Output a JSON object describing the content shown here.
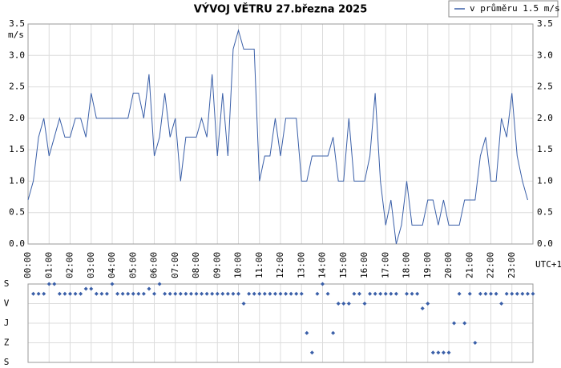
{
  "chart_data": [
    {
      "type": "line",
      "title": "VÝVOJ VĚTRU  27.března 2025",
      "ylabel": "m/s",
      "xlabel": "UTC+1",
      "x": [
        0,
        0.25,
        0.5,
        0.75,
        1.0,
        1.25,
        1.5,
        1.75,
        2.0,
        2.25,
        2.5,
        2.75,
        3.0,
        3.25,
        4.75,
        5.0,
        5.25,
        5.5,
        5.75,
        6.0,
        6.25,
        6.5,
        6.75,
        7.0,
        7.25,
        7.5,
        8.0,
        8.25,
        8.5,
        8.75,
        9.0,
        9.25,
        9.5,
        9.75,
        10.0,
        10.25,
        10.75,
        11.0,
        11.25,
        11.5,
        11.75,
        12.0,
        12.25,
        12.75,
        13.0,
        13.25,
        13.5,
        14.25,
        14.5,
        14.75,
        15.0,
        15.25,
        15.5,
        16.0,
        16.25,
        16.5,
        16.75,
        17.0,
        17.25,
        17.5,
        17.75,
        18.0,
        18.25,
        18.75,
        19.0,
        19.25,
        19.5,
        19.75,
        20.0,
        20.5,
        20.75,
        21.25,
        21.5,
        21.75,
        22.0,
        22.25,
        22.5,
        22.75,
        23.0,
        23.25,
        23.5,
        23.75
      ],
      "series": [
        {
          "name": "v průměru 1.5 m/s",
          "color": "#3a5fa8",
          "values": [
            0.7,
            1.0,
            1.7,
            2.0,
            1.4,
            1.7,
            2.0,
            1.7,
            1.7,
            2.0,
            2.0,
            1.7,
            2.4,
            2.0,
            2.0,
            2.4,
            2.4,
            2.0,
            2.7,
            1.4,
            1.7,
            2.4,
            1.7,
            2.0,
            1.0,
            1.7,
            1.7,
            2.0,
            1.7,
            2.7,
            1.4,
            2.4,
            1.4,
            3.1,
            3.4,
            3.1,
            3.1,
            1.0,
            1.4,
            1.4,
            2.0,
            1.4,
            2.0,
            2.0,
            1.0,
            1.0,
            1.4,
            1.4,
            1.7,
            1.0,
            1.0,
            2.0,
            1.0,
            1.0,
            1.4,
            2.4,
            1.0,
            0.3,
            0.7,
            0.0,
            0.3,
            1.0,
            0.3,
            0.3,
            0.7,
            0.7,
            0.3,
            0.7,
            0.3,
            0.3,
            0.7,
            0.7,
            1.4,
            1.7,
            1.0,
            1.0,
            2.0,
            1.7,
            2.4,
            1.4,
            1.0,
            0.7
          ]
        }
      ],
      "xlim": [
        0,
        24
      ],
      "xticks": [
        {
          "value": 0,
          "label": "00:00"
        },
        {
          "value": 1,
          "label": "01:00"
        },
        {
          "value": 2,
          "label": "02:00"
        },
        {
          "value": 3,
          "label": "03:00"
        },
        {
          "value": 4,
          "label": "04:00"
        },
        {
          "value": 5,
          "label": "05:00"
        },
        {
          "value": 6,
          "label": "06:00"
        },
        {
          "value": 7,
          "label": "07:00"
        },
        {
          "value": 8,
          "label": "08:00"
        },
        {
          "value": 9,
          "label": "09:00"
        },
        {
          "value": 10,
          "label": "10:00"
        },
        {
          "value": 11,
          "label": "11:00"
        },
        {
          "value": 12,
          "label": "12:00"
        },
        {
          "value": 13,
          "label": "13:00"
        },
        {
          "value": 14,
          "label": "14:00"
        },
        {
          "value": 15,
          "label": "15:00"
        },
        {
          "value": 16,
          "label": "16:00"
        },
        {
          "value": 17,
          "label": "17:00"
        },
        {
          "value": 18,
          "label": "18:00"
        },
        {
          "value": 19,
          "label": "19:00"
        },
        {
          "value": 20,
          "label": "20:00"
        },
        {
          "value": 21,
          "label": "21:00"
        },
        {
          "value": 22,
          "label": "22:00"
        },
        {
          "value": 23,
          "label": "23:00"
        }
      ],
      "ylim": [
        0,
        3.5
      ],
      "yticks": [
        {
          "value": 0,
          "label": "0.0"
        },
        0.5,
        {
          "value": 1,
          "label": "1.0"
        },
        1.5,
        {
          "value": 2,
          "label": "2.0"
        },
        2.5,
        {
          "value": 3,
          "label": "3.0"
        },
        3.5
      ],
      "grid": true,
      "legend": "top-right"
    },
    {
      "type": "scatter",
      "color": "#3a5fa8",
      "xlim": [
        0,
        24
      ],
      "ylim": [
        0,
        360
      ],
      "y_inverted": true,
      "grid": true,
      "x": [
        0.25,
        0.5,
        0.75,
        1.0,
        1.25,
        1.5,
        1.75,
        2.0,
        2.25,
        2.5,
        2.75,
        3.0,
        3.25,
        3.5,
        3.75,
        4.0,
        4.25,
        4.5,
        4.75,
        5.0,
        5.25,
        5.5,
        5.75,
        6.0,
        6.25,
        6.5,
        6.75,
        7.0,
        7.25,
        7.5,
        7.75,
        8.0,
        8.25,
        8.5,
        8.75,
        9.0,
        9.25,
        9.5,
        9.75,
        10.0,
        10.25,
        10.5,
        10.75,
        11.0,
        11.25,
        11.5,
        11.75,
        12.0,
        12.25,
        12.5,
        12.75,
        13.0,
        13.25,
        13.5,
        13.75,
        14.0,
        14.25,
        14.5,
        14.75,
        15.0,
        15.25,
        15.5,
        15.75,
        16.0,
        16.25,
        16.5,
        16.75,
        17.0,
        17.25,
        17.5,
        18.0,
        18.25,
        18.5,
        18.75,
        19.0,
        19.25,
        19.5,
        19.75,
        20.0,
        20.25,
        20.5,
        20.75,
        21.0,
        21.25,
        21.5,
        21.75,
        22.0,
        22.25,
        22.5,
        22.75,
        23.0,
        23.25,
        23.5,
        23.75,
        24.0
      ],
      "values": [
        45,
        45,
        45,
        0,
        0,
        45,
        45,
        45,
        45,
        45,
        22,
        22,
        45,
        45,
        45,
        0,
        45,
        45,
        45,
        45,
        45,
        45,
        22,
        45,
        0,
        45,
        45,
        45,
        45,
        45,
        45,
        45,
        45,
        45,
        45,
        45,
        45,
        45,
        45,
        45,
        90,
        45,
        45,
        45,
        45,
        45,
        45,
        45,
        45,
        45,
        45,
        45,
        225,
        315,
        45,
        0,
        45,
        225,
        90,
        90,
        90,
        45,
        45,
        90,
        45,
        45,
        45,
        45,
        45,
        45,
        45,
        45,
        45,
        112,
        90,
        315,
        315,
        315,
        315,
        180,
        45,
        180,
        45,
        270,
        45,
        45,
        45,
        45,
        90,
        45,
        45,
        45,
        45,
        45,
        45
      ],
      "yticks": [
        {
          "value": 0,
          "label": "S"
        },
        {
          "value": 90,
          "label": "V"
        },
        {
          "value": 180,
          "label": "J"
        },
        {
          "value": 270,
          "label": "Z"
        },
        {
          "value": 360,
          "label": "S"
        }
      ]
    }
  ]
}
